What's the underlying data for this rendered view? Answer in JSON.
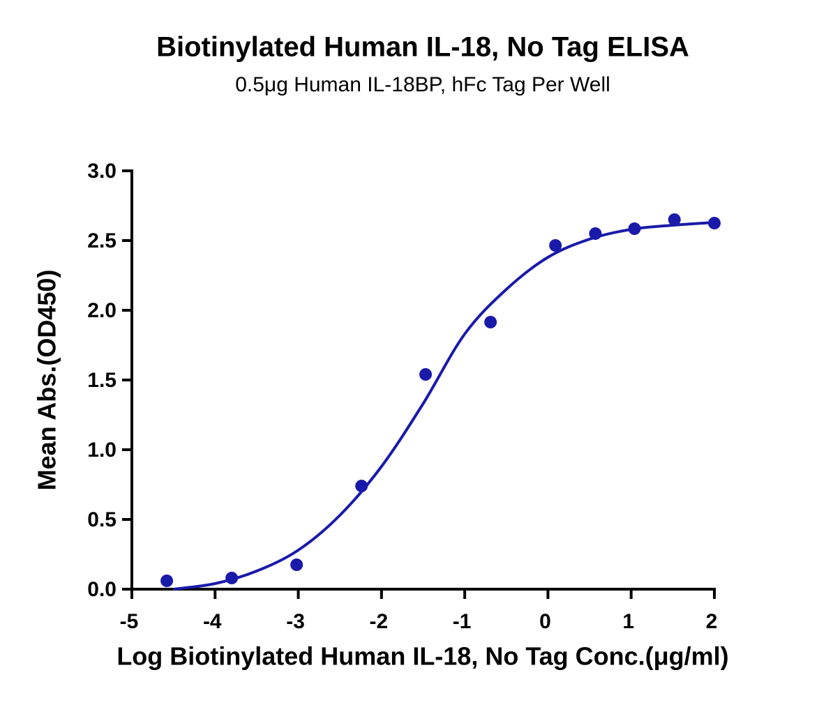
{
  "chart_data": {
    "type": "scatter",
    "title": "Biotinylated Human IL-18, No Tag ELISA",
    "subtitle": "0.5μg Human IL-18BP,  hFc Tag Per Well",
    "x_label": "Log Biotinylated Human IL-18, No Tag Conc.(μg/ml)",
    "y_label": "Mean Abs.(OD450)",
    "color": "#1a1aaa",
    "x": [
      -4.58,
      -3.8,
      -3.02,
      -2.24,
      -1.47,
      -0.69,
      0.09,
      0.57,
      1.04,
      1.52,
      2.0
    ],
    "values": [
      0.06,
      0.08,
      0.175,
      0.74,
      1.54,
      1.915,
      2.465,
      2.55,
      2.585,
      2.65,
      2.625
    ],
    "fit": {
      "x": [
        -4.5,
        -4,
        -3.5,
        -3,
        -2.5,
        -2,
        -1.5,
        -1,
        -0.5,
        0,
        0.5,
        1,
        1.5,
        2
      ],
      "y": [
        0.0,
        0.04,
        0.13,
        0.28,
        0.53,
        0.88,
        1.33,
        1.83,
        2.15,
        2.38,
        2.51,
        2.58,
        2.61,
        2.63
      ]
    },
    "xlim": [
      -5,
      2
    ],
    "xticks": [
      -5,
      -4,
      -3,
      -2,
      -1,
      0,
      1,
      2
    ],
    "ylim": [
      0,
      3
    ],
    "yticks": [
      {
        "value": 0,
        "label": "0.0"
      },
      0.5,
      {
        "value": 1,
        "label": "1.0"
      },
      1.5,
      {
        "value": 2,
        "label": "2.0"
      },
      2.5,
      {
        "value": 3,
        "label": "3.0"
      }
    ],
    "grid": false
  }
}
